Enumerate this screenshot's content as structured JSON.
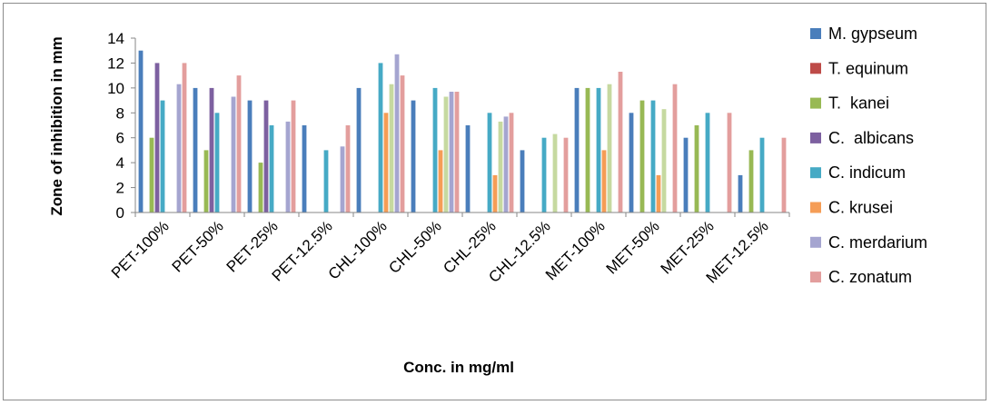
{
  "chart_data": {
    "type": "bar",
    "title": "",
    "xlabel": "Conc. in mg/ml",
    "ylabel": "Zone of inhibition in mm",
    "ylim": [
      0,
      14
    ],
    "yticks": [
      0,
      2,
      4,
      6,
      8,
      10,
      12,
      14
    ],
    "grid": false,
    "legend_position": "right",
    "categories": [
      "PET-100%",
      "PET-50%",
      "PET-25%",
      "PET-12.5%",
      "CHL-100%",
      "CHL-50%",
      "CHL-25%",
      "CHL-12.5%",
      "MET-100%",
      "MET-50%",
      "MET-25%",
      "MET-12.5%"
    ],
    "series": [
      {
        "name": "M. gypseum",
        "color": "#4a7ebb",
        "values": [
          13,
          10,
          9,
          7,
          10,
          9,
          7,
          5,
          10,
          8,
          6,
          3
        ]
      },
      {
        "name": "T. equinum",
        "color": "#be4b48",
        "values": [
          0,
          0,
          0,
          0,
          0,
          0,
          0,
          0,
          0,
          0,
          0,
          0
        ]
      },
      {
        "name": "T.  kanei",
        "color": "#98b954",
        "values": [
          6,
          5,
          4,
          0,
          0,
          0,
          0,
          0,
          10,
          9,
          7,
          5
        ]
      },
      {
        "name": "C.  albicans",
        "color": "#7d60a0",
        "values": [
          12,
          10,
          9,
          0,
          0,
          0,
          0,
          0,
          0,
          0,
          0,
          0
        ]
      },
      {
        "name": "C. indicum",
        "color": "#46aac5",
        "values": [
          9,
          8,
          7,
          5,
          12,
          10,
          8,
          6,
          10,
          9,
          8,
          6
        ]
      },
      {
        "name": "C. krusei",
        "color": "#f59d56",
        "values": [
          0,
          0,
          0,
          0,
          8,
          5,
          3,
          0,
          5,
          3,
          0,
          0
        ]
      },
      {
        "name": "C. merdarium",
        "color": "#a5a5d0",
        "values": [
          10.3,
          9.3,
          7.3,
          5.3,
          12.7,
          9.7,
          7.7,
          0,
          0,
          0,
          0,
          0
        ]
      },
      {
        "name": "C. zonatum",
        "color": "#e39e9d",
        "values": [
          12,
          11,
          9,
          7,
          11,
          9.7,
          8,
          6,
          11.3,
          10.3,
          8,
          6
        ]
      }
    ],
    "extra_series_note_free": null
  },
  "extra_bars": {
    "color": "#c6d9a0",
    "values": [
      0,
      0,
      0,
      0,
      10.3,
      9.3,
      7.3,
      6.3,
      10.3,
      8.3,
      0,
      0
    ]
  }
}
